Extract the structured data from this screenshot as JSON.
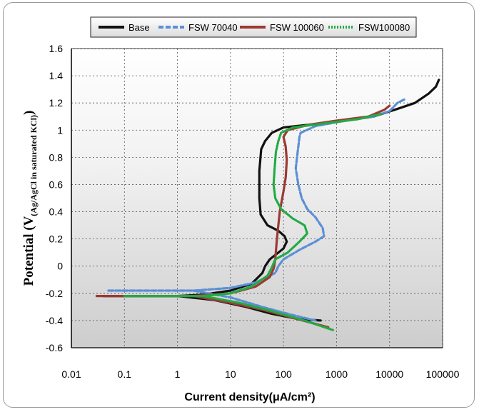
{
  "chart_data": {
    "type": "line",
    "xscale": "log",
    "xlabel": "Current density(μA/cm²)",
    "ylabel_main": "Potential (V",
    "ylabel_sub": "(Ag/AgCl in saturated KCl)",
    "ylabel_end": ")",
    "xlim": [
      0.01,
      100000
    ],
    "ylim": [
      -0.6,
      1.6
    ],
    "xticks": [
      0.01,
      0.1,
      1,
      10,
      100,
      1000,
      10000,
      100000
    ],
    "xtick_labels": [
      "0.01",
      "0.1",
      "1",
      "10",
      "100",
      "1000",
      "10000",
      "100000"
    ],
    "yticks": [
      -0.6,
      -0.4,
      -0.2,
      0,
      0.2,
      0.4,
      0.6,
      0.8,
      1,
      1.2,
      1.4,
      1.6
    ],
    "ytick_labels": [
      "-0.6",
      "-0.4",
      "-0.2",
      "0",
      "0.2",
      "0.4",
      "0.6",
      "0.8",
      "1",
      "1.2",
      "1.4",
      "1.6"
    ],
    "grid": true,
    "legend_position": "top",
    "series": [
      {
        "name": "Base",
        "color": "#111111",
        "dash": "solid",
        "points": [
          [
            0.04,
            -0.22
          ],
          [
            0.2,
            -0.22
          ],
          [
            1,
            -0.22
          ],
          [
            3,
            -0.21
          ],
          [
            10,
            -0.18
          ],
          [
            25,
            -0.13
          ],
          [
            40,
            -0.05
          ],
          [
            45,
            0.0
          ],
          [
            55,
            0.05
          ],
          [
            80,
            0.1
          ],
          [
            100,
            0.13
          ],
          [
            115,
            0.18
          ],
          [
            105,
            0.22
          ],
          [
            80,
            0.26
          ],
          [
            50,
            0.3
          ],
          [
            37,
            0.38
          ],
          [
            35,
            0.5
          ],
          [
            35,
            0.7
          ],
          [
            38,
            0.86
          ],
          [
            45,
            0.92
          ],
          [
            60,
            0.98
          ],
          [
            100,
            1.02
          ],
          [
            300,
            1.04
          ],
          [
            1000,
            1.06
          ],
          [
            5000,
            1.1
          ],
          [
            15000,
            1.16
          ],
          [
            30000,
            1.2
          ],
          [
            55000,
            1.27
          ],
          [
            75000,
            1.32
          ],
          [
            85000,
            1.37
          ]
        ],
        "cathodic": [
          [
            1,
            -0.22
          ],
          [
            5,
            -0.25
          ],
          [
            20,
            -0.3
          ],
          [
            60,
            -0.35
          ],
          [
            200,
            -0.39
          ],
          [
            500,
            -0.4
          ]
        ]
      },
      {
        "name": "FSW 70040",
        "color": "#5b8fd6",
        "dash": "dashed",
        "points": [
          [
            0.05,
            -0.18
          ],
          [
            0.3,
            -0.18
          ],
          [
            2,
            -0.18
          ],
          [
            10,
            -0.16
          ],
          [
            30,
            -0.12
          ],
          [
            70,
            -0.05
          ],
          [
            80,
            0.0
          ],
          [
            100,
            0.05
          ],
          [
            200,
            0.12
          ],
          [
            400,
            0.18
          ],
          [
            580,
            0.22
          ],
          [
            550,
            0.28
          ],
          [
            400,
            0.36
          ],
          [
            280,
            0.42
          ],
          [
            220,
            0.5
          ],
          [
            190,
            0.6
          ],
          [
            170,
            0.72
          ],
          [
            185,
            0.84
          ],
          [
            200,
            0.95
          ],
          [
            210,
            0.98
          ],
          [
            400,
            1.03
          ],
          [
            1500,
            1.07
          ],
          [
            5000,
            1.1
          ],
          [
            10000,
            1.14
          ],
          [
            14000,
            1.2
          ],
          [
            20000,
            1.23
          ]
        ],
        "cathodic": [
          [
            2,
            -0.18
          ],
          [
            10,
            -0.23
          ],
          [
            40,
            -0.3
          ],
          [
            150,
            -0.36
          ],
          [
            400,
            -0.4
          ]
        ]
      },
      {
        "name": "FSW 100060",
        "color": "#9b3a33",
        "dash": "solid",
        "points": [
          [
            0.03,
            -0.22
          ],
          [
            0.3,
            -0.22
          ],
          [
            2,
            -0.22
          ],
          [
            10,
            -0.2
          ],
          [
            30,
            -0.15
          ],
          [
            55,
            -0.08
          ],
          [
            65,
            -0.02
          ],
          [
            70,
            0.05
          ],
          [
            75,
            0.2
          ],
          [
            85,
            0.4
          ],
          [
            100,
            0.55
          ],
          [
            110,
            0.65
          ],
          [
            115,
            0.78
          ],
          [
            110,
            0.88
          ],
          [
            100,
            0.95
          ],
          [
            120,
            1.0
          ],
          [
            300,
            1.04
          ],
          [
            1000,
            1.07
          ],
          [
            4000,
            1.1
          ],
          [
            8000,
            1.15
          ],
          [
            10000,
            1.18
          ]
        ],
        "cathodic": [
          [
            2,
            -0.22
          ],
          [
            10,
            -0.27
          ],
          [
            40,
            -0.32
          ],
          [
            150,
            -0.38
          ],
          [
            700,
            -0.45
          ]
        ]
      },
      {
        "name": "FSW100080",
        "color": "#22aa44",
        "dash": "dotted",
        "points": [
          [
            0.1,
            -0.22
          ],
          [
            0.6,
            -0.22
          ],
          [
            3,
            -0.22
          ],
          [
            10,
            -0.2
          ],
          [
            25,
            -0.15
          ],
          [
            50,
            -0.07
          ],
          [
            60,
            -0.01
          ],
          [
            70,
            0.05
          ],
          [
            120,
            0.1
          ],
          [
            200,
            0.18
          ],
          [
            280,
            0.24
          ],
          [
            250,
            0.3
          ],
          [
            150,
            0.35
          ],
          [
            90,
            0.42
          ],
          [
            70,
            0.5
          ],
          [
            65,
            0.6
          ],
          [
            68,
            0.72
          ],
          [
            72,
            0.84
          ],
          [
            80,
            0.92
          ],
          [
            90,
            0.98
          ],
          [
            150,
            1.02
          ],
          [
            600,
            1.05
          ],
          [
            2500,
            1.08
          ],
          [
            7000,
            1.12
          ]
        ],
        "cathodic": [
          [
            3,
            -0.22
          ],
          [
            15,
            -0.27
          ],
          [
            60,
            -0.33
          ],
          [
            250,
            -0.4
          ],
          [
            850,
            -0.47
          ]
        ]
      }
    ]
  }
}
